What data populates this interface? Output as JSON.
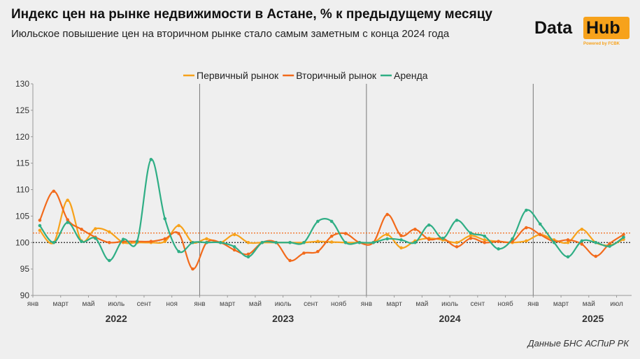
{
  "title": "Индекс цен на рынке недвижимости в Астане, % к предыдущему месяцу",
  "subtitle": "Июльское повышение цен на вторичном рынке стало самым заметным с конца 2024 года",
  "logo": {
    "data": "Data",
    "hub": "Hub",
    "powered": "Powered by FCBK"
  },
  "source": "Данные БНС АСПиР РК",
  "chart_data": {
    "type": "line",
    "ylim": [
      90,
      130
    ],
    "yticks": [
      90,
      95,
      100,
      105,
      110,
      115,
      120,
      125,
      130
    ],
    "xtick_labels": [
      "янв",
      "март",
      "май",
      "июль",
      "сент",
      "ноя",
      "янв",
      "март",
      "май",
      "июль",
      "сент",
      "нояб",
      "янв",
      "март",
      "май",
      "июль",
      "сент",
      "нояб",
      "янв",
      "март",
      "май",
      "июл"
    ],
    "year_labels": [
      "2022",
      "2023",
      "2024",
      "2025"
    ],
    "legend_placement": "top-center",
    "reference_lines": [
      {
        "value": 100,
        "color": "#222222"
      },
      {
        "value": 101.8,
        "color": "#f26a1b"
      }
    ],
    "start": "2022-01",
    "series": [
      {
        "name": "Первичный рынок",
        "color": "#f7a21b",
        "values": [
          102.3,
          100,
          108,
          100.3,
          102.6,
          102,
          100,
          100,
          100,
          100.2,
          103.2,
          100,
          100.7,
          100,
          101.5,
          100,
          100,
          100,
          100,
          100,
          100.2,
          100.1,
          100,
          100,
          100,
          101.5,
          99,
          100.3,
          100.8,
          100.5,
          100,
          101.3,
          100.5,
          100.2,
          100,
          100.3,
          101.5,
          100.5,
          100,
          102.5,
          100,
          99.5,
          100.6
        ]
      },
      {
        "name": "Вторичный рынок",
        "color": "#f26a1b",
        "values": [
          104.2,
          109.7,
          104.3,
          102.5,
          101,
          100,
          100.2,
          100.2,
          100.2,
          100.7,
          101.7,
          95,
          100,
          100,
          98.6,
          97.8,
          100,
          100,
          96.6,
          98,
          98.3,
          101.2,
          101.7,
          100,
          100,
          105.3,
          101.3,
          102.5,
          100.6,
          100.8,
          99.2,
          100.8,
          100,
          100.2,
          100.2,
          102.8,
          101.5,
          100.2,
          100.5,
          99.7,
          97.4,
          99.8,
          101.5
        ]
      },
      {
        "name": "Аренда",
        "color": "#2fae85",
        "values": [
          103.2,
          100,
          103.8,
          100.2,
          100.8,
          96.6,
          100.6,
          100.2,
          115.7,
          104.5,
          98.3,
          100,
          100,
          100,
          99.2,
          97.3,
          100,
          100,
          100,
          100,
          104,
          104,
          100,
          100,
          100,
          100.7,
          100.5,
          100,
          103.3,
          100.8,
          104.2,
          101.8,
          101.2,
          98.8,
          100.7,
          106.1,
          103.5,
          100,
          97.3,
          100.3,
          100,
          99.3,
          101
        ]
      }
    ]
  }
}
